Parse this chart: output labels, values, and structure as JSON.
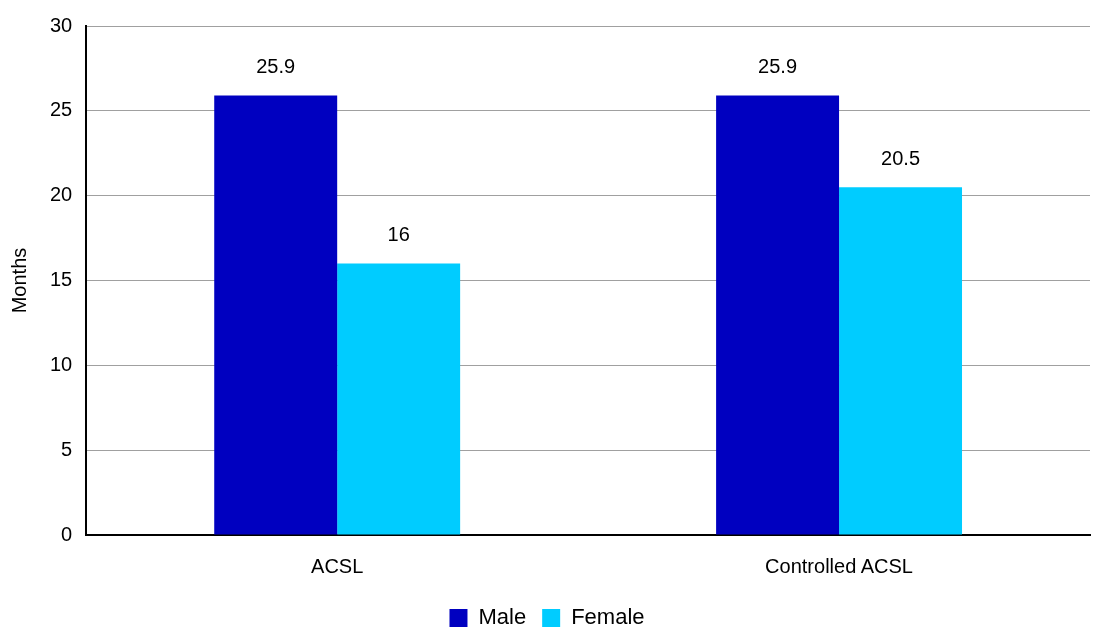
{
  "chart_data": {
    "type": "bar",
    "ylabel": "Months",
    "categories": [
      "ACSL",
      "Controlled ACSL"
    ],
    "series": [
      {
        "name": "Male",
        "color": "#0000c0",
        "values": [
          25.9,
          25.9
        ]
      },
      {
        "name": "Female",
        "color": "#00ccff",
        "values": [
          16,
          20.5
        ]
      }
    ],
    "ylim": [
      0,
      30
    ],
    "yticks": [
      0,
      5,
      10,
      15,
      20,
      25,
      30
    ],
    "grid": "y",
    "legend": "bottom",
    "data_labels": true
  }
}
